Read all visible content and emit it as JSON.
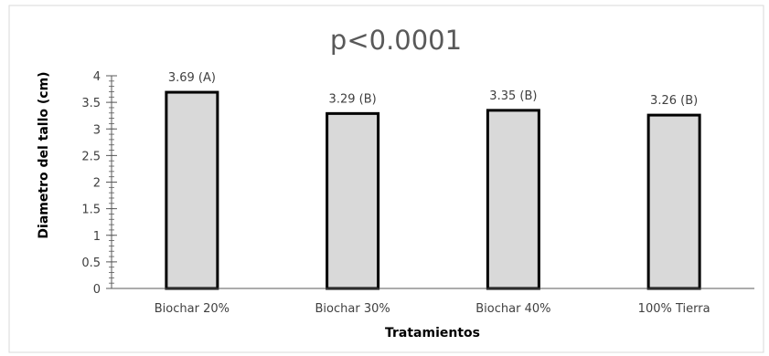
{
  "chart_data": {
    "type": "bar",
    "title": "p<0.0001",
    "xlabel": "Tratamientos",
    "ylabel": "Diametro del tallo (cm)",
    "ylim": [
      0,
      4
    ],
    "yticks": [
      "0",
      "0.5",
      "1",
      "1.5",
      "2",
      "2.5",
      "3",
      "3.5",
      "4"
    ],
    "categories": [
      "Biochar 20%",
      "Biochar 30%",
      "Biochar 40%",
      "100% Tierra"
    ],
    "values": [
      3.69,
      3.29,
      3.35,
      3.26
    ],
    "data_labels": [
      "3.69 (A)",
      "3.29 (B)",
      "3.35 (B)",
      "3.26 (B)"
    ],
    "grid": false,
    "colors": {
      "bar_fill": "#d9d9d9",
      "bar_stroke": "#000000",
      "frame": "#d9d9d9",
      "axis": "#595959"
    }
  }
}
